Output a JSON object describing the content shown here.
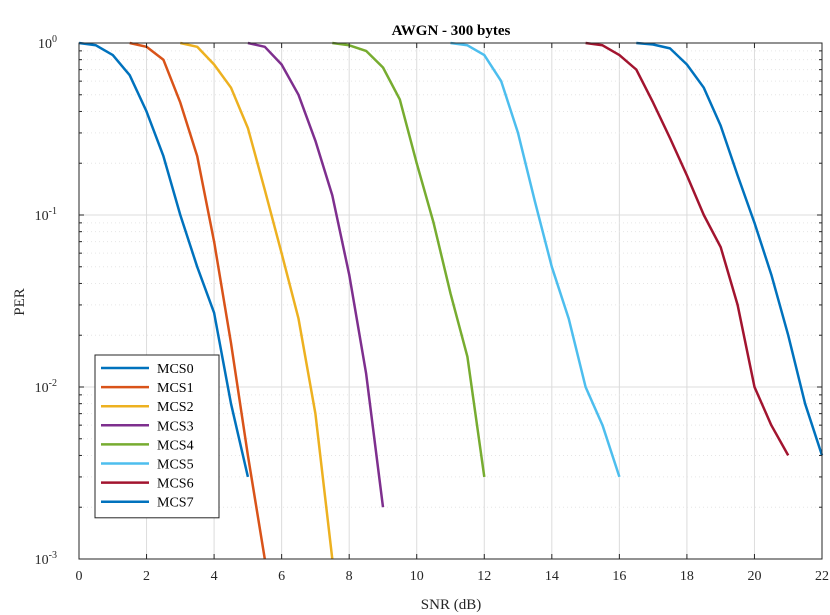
{
  "chart_data": {
    "type": "line",
    "title": "AWGN - 300 bytes",
    "xlabel": "SNR (dB)",
    "ylabel": "PER",
    "xlim": [
      0,
      22
    ],
    "ylim": [
      0.001,
      1
    ],
    "yscale": "log",
    "grid": true,
    "legend_position": "bottom-left",
    "x_ticks": [
      0,
      2,
      4,
      6,
      8,
      10,
      12,
      14,
      16,
      18,
      20,
      22
    ],
    "y_ticks": [
      {
        "value": 0.001,
        "base": "10",
        "exp": "-3"
      },
      {
        "value": 0.01,
        "base": "10",
        "exp": "-2"
      },
      {
        "value": 0.1,
        "base": "10",
        "exp": "-1"
      },
      {
        "value": 1,
        "base": "10",
        "exp": "0"
      }
    ],
    "series": [
      {
        "name": "MCS0",
        "color": "#0072BD",
        "x": [
          0,
          0.5,
          1,
          1.5,
          2,
          2.5,
          3,
          3.5,
          4,
          4.5,
          5
        ],
        "y": [
          1,
          0.97,
          0.85,
          0.65,
          0.4,
          0.22,
          0.1,
          0.05,
          0.027,
          0.008,
          0.003
        ]
      },
      {
        "name": "MCS1",
        "color": "#D95319",
        "x": [
          1.5,
          2,
          2.5,
          3,
          3.5,
          4,
          4.5,
          5,
          5.5
        ],
        "y": [
          1,
          0.95,
          0.8,
          0.45,
          0.22,
          0.07,
          0.018,
          0.004,
          0.001
        ]
      },
      {
        "name": "MCS2",
        "color": "#EDB120",
        "x": [
          3,
          3.5,
          4,
          4.5,
          5,
          5.5,
          6,
          6.5,
          7,
          7.5
        ],
        "y": [
          1,
          0.95,
          0.75,
          0.55,
          0.32,
          0.14,
          0.06,
          0.025,
          0.007,
          0.001
        ]
      },
      {
        "name": "MCS3",
        "color": "#7E2F8E",
        "x": [
          5,
          5.5,
          6,
          6.5,
          7,
          7.5,
          8,
          8.5,
          9
        ],
        "y": [
          1,
          0.95,
          0.75,
          0.5,
          0.27,
          0.13,
          0.045,
          0.012,
          0.002
        ]
      },
      {
        "name": "MCS4",
        "color": "#77AC30",
        "x": [
          7.5,
          8,
          8.5,
          9,
          9.5,
          10,
          10.5,
          11,
          11.5,
          12
        ],
        "y": [
          1,
          0.97,
          0.9,
          0.72,
          0.47,
          0.2,
          0.09,
          0.035,
          0.015,
          0.003
        ]
      },
      {
        "name": "MCS5",
        "color": "#4DBEEE",
        "x": [
          11,
          11.5,
          12,
          12.5,
          13,
          13.5,
          14,
          14.5,
          15,
          15.5,
          16
        ],
        "y": [
          1,
          0.97,
          0.85,
          0.6,
          0.3,
          0.12,
          0.05,
          0.025,
          0.01,
          0.006,
          0.003
        ]
      },
      {
        "name": "MCS6",
        "color": "#A2142F",
        "x": [
          15,
          15.5,
          16,
          16.5,
          17,
          17.5,
          18,
          18.5,
          19,
          19.5,
          20,
          20.5,
          21
        ],
        "y": [
          1,
          0.97,
          0.85,
          0.7,
          0.45,
          0.28,
          0.17,
          0.1,
          0.065,
          0.03,
          0.01,
          0.006,
          0.004
        ]
      },
      {
        "name": "MCS7",
        "color": "#0072BD",
        "x": [
          16.5,
          17,
          17.5,
          18,
          18.5,
          19,
          19.5,
          20,
          20.5,
          21,
          21.5,
          22
        ],
        "y": [
          1,
          0.98,
          0.93,
          0.75,
          0.55,
          0.33,
          0.17,
          0.09,
          0.045,
          0.02,
          0.008,
          0.004
        ]
      }
    ]
  }
}
